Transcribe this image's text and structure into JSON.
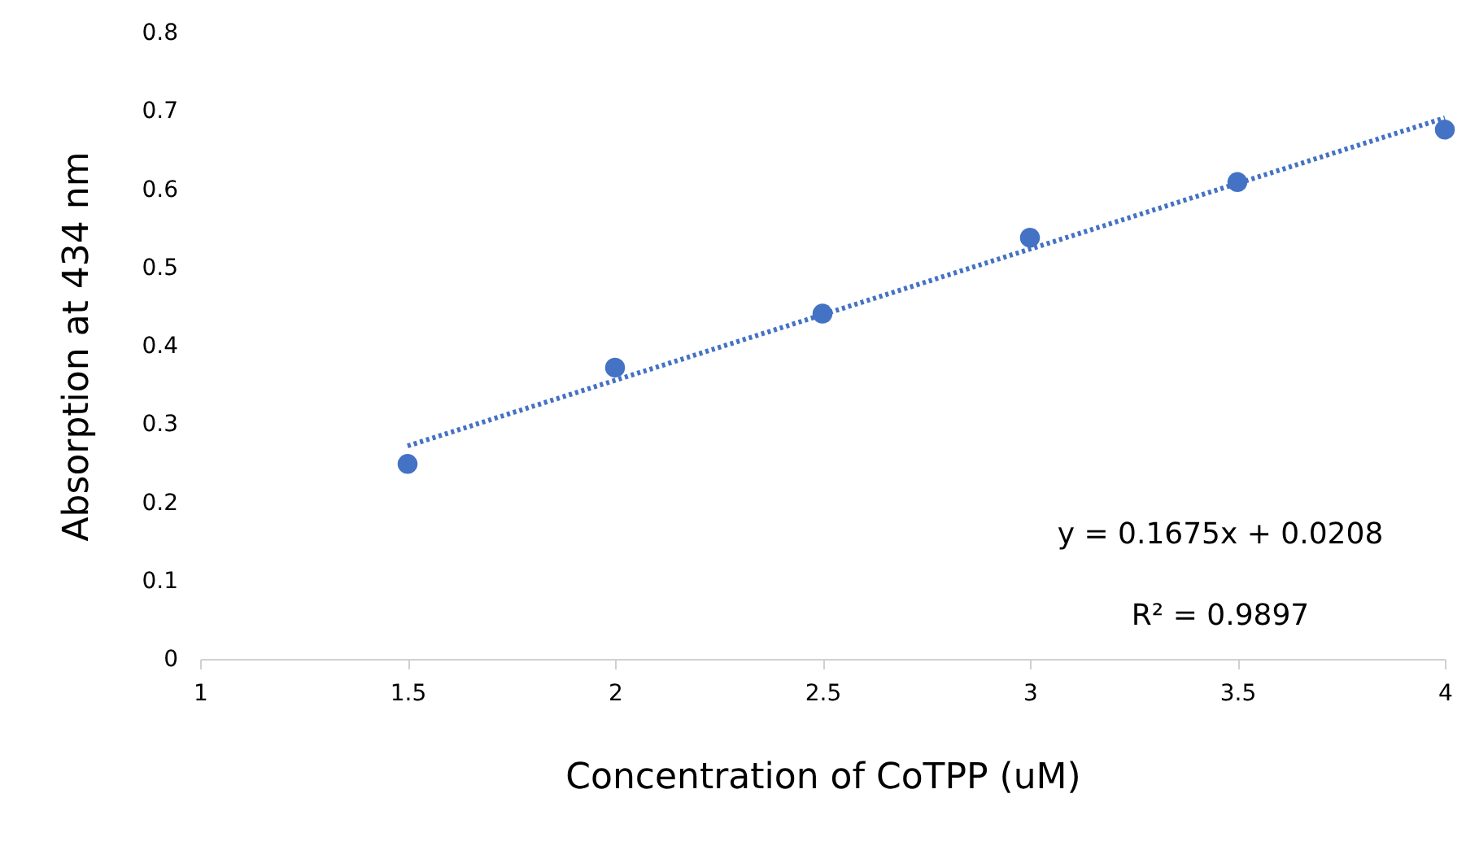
{
  "chart_data": {
    "type": "scatter",
    "xlabel": "Concentration of CoTPP (uM)",
    "ylabel": "Absorption at 434 nm",
    "xlim": [
      1,
      4
    ],
    "xticks": [
      1,
      1.5,
      2,
      2.5,
      3,
      3.5,
      4
    ],
    "ylim": [
      0,
      0.8
    ],
    "yticks": [
      0,
      0.1,
      0.2,
      0.3,
      0.4,
      0.5,
      0.6,
      0.7,
      0.8
    ],
    "grid": false,
    "marker": "circle",
    "series": [
      {
        "color": "#4472c4",
        "x": [
          1.5,
          2,
          2.5,
          3,
          3.5,
          4
        ],
        "values": [
          0.249,
          0.372,
          0.441,
          0.538,
          0.609,
          0.676
        ]
      },
      {
        "type": "line",
        "marker": "none",
        "color": "#4472c4",
        "line_style": "dotted",
        "x": [
          1.5,
          4
        ],
        "values": [
          0.272,
          0.691
        ]
      }
    ],
    "annotations": [
      "y = 0.1675x + 0.0208",
      "R² = 0.9897"
    ]
  }
}
